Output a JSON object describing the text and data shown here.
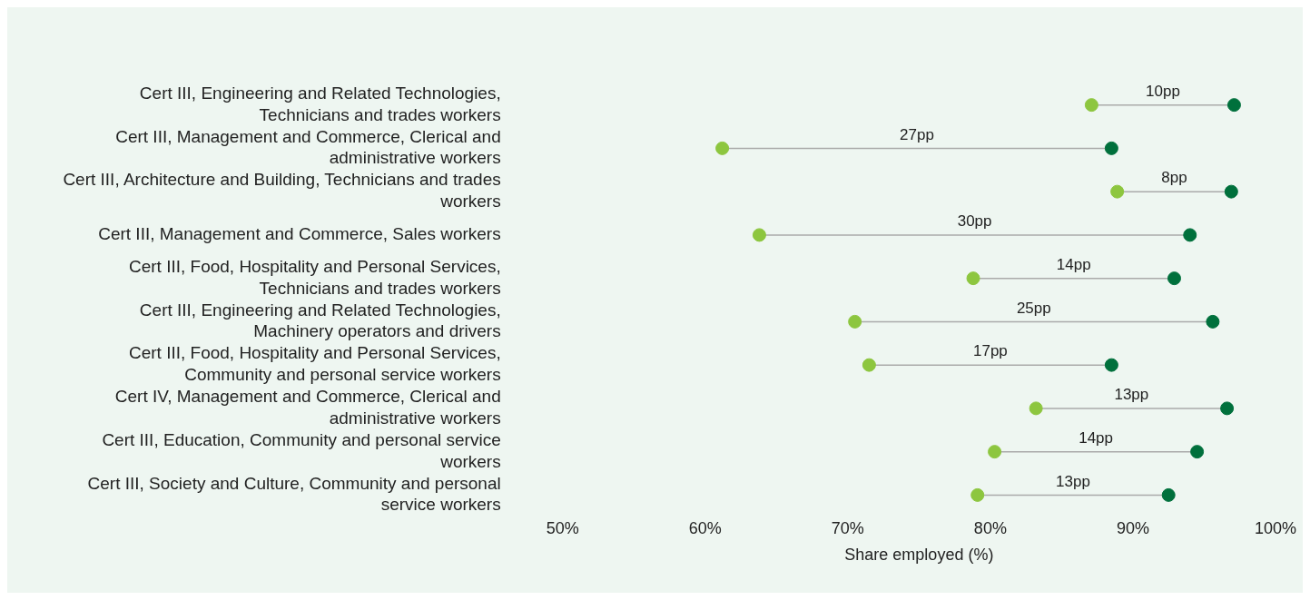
{
  "chart_data": {
    "type": "scatter",
    "orientation": "horizontal",
    "xlabel": "Share employed (%)",
    "marker": "circle",
    "grid": false,
    "categories": [
      "Cert III, Engineering and Related Technologies, Technicians and trades workers",
      "Cert III, Management and Commerce, Clerical and administrative workers",
      "Cert III, Architecture and Building, Technicians and trades workers",
      "Cert III, Management and Commerce, Sales workers",
      "Cert III, Food, Hospitality and Personal Services, Technicians and trades workers",
      "Cert III, Engineering and Related Technologies, Machinery operators and drivers",
      "Cert III, Food, Hospitality and Personal Services, Community and personal service workers",
      "Cert IV, Management and Commerce, Clerical and administrative workers",
      "Cert III, Education, Community and personal service workers",
      "Cert III, Society and Culture, Community and personal service workers"
    ],
    "series": [
      {
        "color": "#8dc63f",
        "values": [
          87.1,
          61.2,
          88.9,
          63.8,
          78.8,
          70.5,
          71.5,
          83.2,
          80.3,
          79.1
        ]
      },
      {
        "color": "#00703c",
        "values": [
          97.1,
          88.5,
          96.9,
          94.0,
          92.9,
          95.6,
          88.5,
          96.6,
          94.5,
          92.5
        ]
      }
    ],
    "xlim": [
      50,
      100
    ],
    "xticks": [
      {
        "value": 50,
        "label": "50%"
      },
      {
        "value": 60,
        "label": "60%"
      },
      {
        "value": 70,
        "label": "70%"
      },
      {
        "value": 80,
        "label": "80%"
      },
      {
        "value": 90,
        "label": "90%"
      },
      {
        "value": 100,
        "label": "100%"
      }
    ],
    "annotations": [
      "10pp",
      "27pp",
      "8pp",
      "30pp",
      "14pp",
      "25pp",
      "17pp",
      "13pp",
      "14pp",
      "13pp"
    ]
  }
}
